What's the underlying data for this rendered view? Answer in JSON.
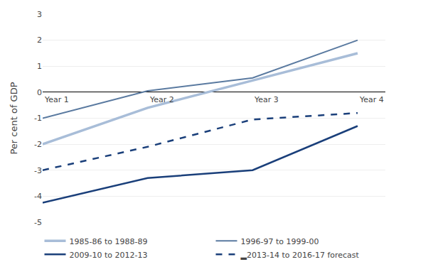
{
  "chart_data": {
    "type": "line",
    "categories": [
      "Year 1",
      "Year 2",
      "Year 3",
      "Year 4"
    ],
    "series": [
      {
        "name": "1985-86 to 1988-89",
        "color": "#a8bdd8",
        "line_style": "solid",
        "values": [
          -2.0,
          -0.6,
          0.45,
          1.5
        ]
      },
      {
        "name": "1996-97 to 1999-00",
        "color": "#5a7aa0",
        "line_style": "solid",
        "values": [
          -1.0,
          0.05,
          0.55,
          2.0
        ]
      },
      {
        "name": "2009-10 to 2012-13",
        "color": "#1a3f7a",
        "line_style": "solid",
        "values": [
          -4.25,
          -3.3,
          -3.0,
          -1.3
        ]
      },
      {
        "name": "▂2013-14 to 2016-17 forecast",
        "color": "#1a3f7a",
        "line_style": "dash",
        "values": [
          -3.0,
          -2.1,
          -1.05,
          -0.8
        ]
      }
    ],
    "ylabel": "Per cent of GDP",
    "ylim": [
      -5,
      3
    ],
    "yticks": [
      -5,
      -4,
      -3,
      -2,
      -1,
      0,
      1,
      2,
      3
    ],
    "grid": true,
    "legend": "bottom"
  }
}
